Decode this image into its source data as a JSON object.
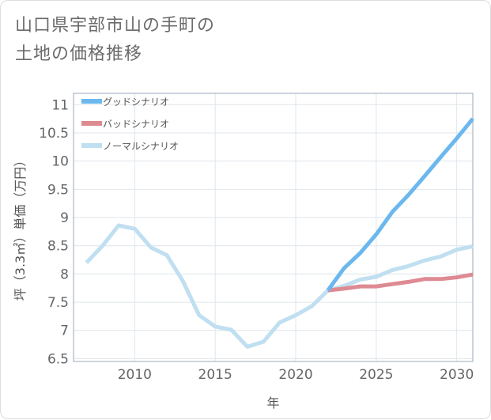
{
  "chart_data": {
    "type": "line",
    "title_lines": [
      "山口県宇部市山の手町の",
      "土地の価格推移"
    ],
    "xlabel": "年",
    "ylabel": "坪（3.3㎡）単価（万円）",
    "xlim": [
      2006.2,
      2031
    ],
    "ylim": [
      6.45,
      11.2
    ],
    "x_ticks": [
      "2010",
      "2015",
      "2020",
      "2025",
      "2030"
    ],
    "y_ticks": [
      "6.5",
      "7",
      "7.5",
      "8",
      "8.5",
      "9",
      "9.5",
      "10",
      "10.5",
      "11"
    ],
    "grid": true,
    "legend_position": "top-left",
    "series": [
      {
        "name": "グッドシナリオ",
        "color": "#6cb8ee",
        "x": [
          2022,
          2023,
          2024,
          2025,
          2026,
          2027,
          2028,
          2029,
          2030,
          2031
        ],
        "y": [
          7.71,
          8.1,
          8.37,
          8.7,
          9.1,
          9.4,
          9.73,
          10.07,
          10.4,
          10.75
        ]
      },
      {
        "name": "バッドシナリオ",
        "color": "#de8a92",
        "x": [
          2022,
          2023,
          2024,
          2025,
          2026,
          2027,
          2028,
          2029,
          2030,
          2031
        ],
        "y": [
          7.71,
          7.74,
          7.78,
          7.78,
          7.82,
          7.86,
          7.91,
          7.91,
          7.94,
          7.99
        ]
      },
      {
        "name": "ノーマルシナリオ",
        "color": "#c0dff0",
        "x": [
          2007,
          2008,
          2009,
          2010,
          2011,
          2012,
          2013,
          2014,
          2015,
          2016,
          2017,
          2018,
          2019,
          2020,
          2021,
          2022,
          2023,
          2024,
          2025,
          2026,
          2027,
          2028,
          2029,
          2030,
          2031
        ],
        "y": [
          8.2,
          8.5,
          8.86,
          8.8,
          8.47,
          8.33,
          7.87,
          7.27,
          7.07,
          7.01,
          6.71,
          6.8,
          7.14,
          7.27,
          7.43,
          7.71,
          7.79,
          7.9,
          7.95,
          8.07,
          8.14,
          8.24,
          8.31,
          8.43,
          8.49
        ]
      }
    ]
  }
}
